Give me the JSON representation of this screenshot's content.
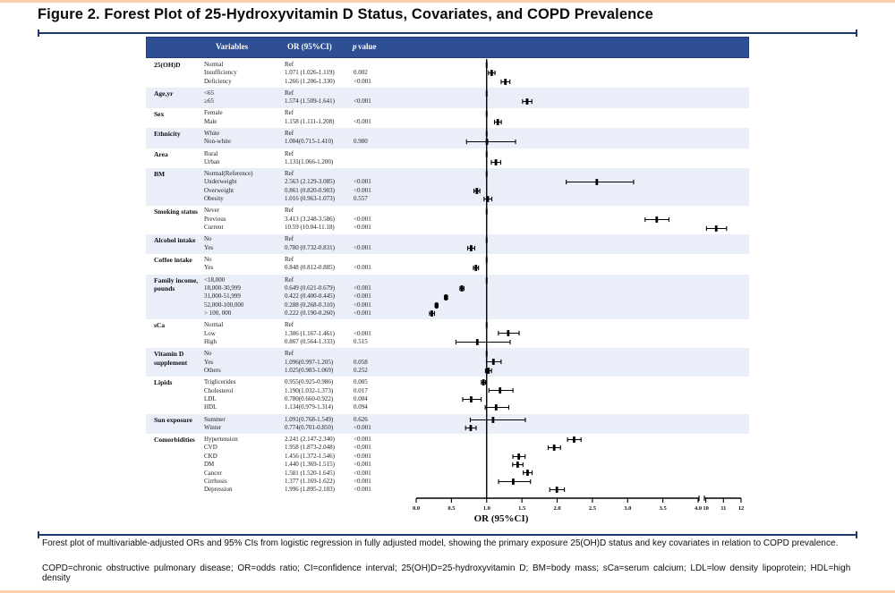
{
  "title": "Figure 2. Forest Plot of 25-Hydroxyvitamin D Status, Covariates, and COPD Prevalence",
  "table": {
    "header": {
      "variables": "Variables",
      "or_ci": "OR (95%CI)",
      "p_italic": "p",
      "p_rest": "value"
    }
  },
  "captions": {
    "line1": "Forest plot of multivariable-adjusted ORs and 95% CIs from logistic regression in fully adjusted model, showing the primary exposure 25(OH)D status and key covariates in relation to COPD prevalence.",
    "line2": "COPD=chronic obstructive pulmonary disease; OR=odds ratio; CI=confidence interval; 25(OH)D=25-hydroxyvitamin D; BM=body mass; sCa=serum calcium; LDL=low density lipoprotein; HDL=high density"
  },
  "colors": {
    "header_bg": "#2e4f93",
    "header_border": "#203d79",
    "band_shade": "#e9eef8",
    "bracket_navy": "#1e3a6d",
    "edge_peach": "#f8cfae",
    "marker_black": "#000000"
  },
  "chart_data": {
    "type": "forest",
    "xlabel": "OR (95%CI)",
    "reference_or": 1.0,
    "axis": {
      "linear_ticks": [
        0.0,
        0.5,
        1.0,
        1.5,
        2.0,
        2.5,
        3.0,
        3.5,
        4.0
      ],
      "compressed_ticks": [
        10,
        11,
        12
      ],
      "break_after": 4.0,
      "grid": false
    },
    "groups": [
      {
        "label": "25(OH)D",
        "rows": [
          {
            "level": "Normal",
            "or_text": "Ref",
            "p": "",
            "ref": true
          },
          {
            "level": "Insufficiency",
            "or_text": "1.071 (1.026-1.119)",
            "p": "0.002",
            "or": 1.071,
            "lo": 1.026,
            "hi": 1.119
          },
          {
            "level": "Deficiency",
            "or_text": "1.266 (1.206-1.330)",
            "p": "<0.001",
            "or": 1.266,
            "lo": 1.206,
            "hi": 1.33
          }
        ]
      },
      {
        "label": "Age,yr",
        "rows": [
          {
            "level": "<65",
            "or_text": "Ref",
            "p": "",
            "ref": true
          },
          {
            "level": "≥65",
            "or_text": "1.574 (1.509-1.641)",
            "p": "<0.001",
            "or": 1.574,
            "lo": 1.509,
            "hi": 1.641
          }
        ]
      },
      {
        "label": "Sex",
        "rows": [
          {
            "level": "Female",
            "or_text": "Ref",
            "p": "",
            "ref": true
          },
          {
            "level": "Male",
            "or_text": "1.158 (1.111-1.208)",
            "p": "<0.001",
            "or": 1.158,
            "lo": 1.111,
            "hi": 1.208
          }
        ]
      },
      {
        "label": "Ethnicity",
        "rows": [
          {
            "level": "White",
            "or_text": "Ref",
            "p": "",
            "ref": true
          },
          {
            "level": "Non-white",
            "or_text": "1.004(0.715-1.410)",
            "p": "0.980",
            "or": 1.004,
            "lo": 0.715,
            "hi": 1.41
          }
        ]
      },
      {
        "label": "Area",
        "rows": [
          {
            "level": "Rural",
            "or_text": "Ref",
            "p": "",
            "ref": true
          },
          {
            "level": "Urban",
            "or_text": "1.131(1.066-1.200)",
            "p": "",
            "or": 1.131,
            "lo": 1.066,
            "hi": 1.2
          }
        ]
      },
      {
        "label": "BM",
        "rows": [
          {
            "level": "Normal(Reference)",
            "or_text": "Ref",
            "p": "",
            "ref": true
          },
          {
            "level": "Underweight",
            "or_text": "2.563 (2.129-3.085)",
            "p": "<0.001",
            "or": 2.563,
            "lo": 2.129,
            "hi": 3.085
          },
          {
            "level": "Overweight",
            "or_text": "0.861 (0.820-0.903)",
            "p": "<0.001",
            "or": 0.861,
            "lo": 0.82,
            "hi": 0.903
          },
          {
            "level": "Obesity",
            "or_text": "1.016 (0.963-1.073)",
            "p": "0.557",
            "or": 1.016,
            "lo": 0.963,
            "hi": 1.073
          }
        ]
      },
      {
        "label": "Smoking status",
        "rows": [
          {
            "level": "Never",
            "or_text": "Ref",
            "p": "",
            "ref": true
          },
          {
            "level": "Previous",
            "or_text": "3.413 (3.248-3.586)",
            "p": "<0.001",
            "or": 3.413,
            "lo": 3.248,
            "hi": 3.586
          },
          {
            "level": "Current",
            "or_text": "10.59 (10.04-11.18)",
            "p": "<0.001",
            "or": 10.59,
            "lo": 10.04,
            "hi": 11.18
          }
        ]
      },
      {
        "label": "Alcohol intake",
        "rows": [
          {
            "level": "No",
            "or_text": "Ref",
            "p": "",
            "ref": true
          },
          {
            "level": "Yes",
            "or_text": "0.780 (0.732-0.831)",
            "p": "<0.001",
            "or": 0.78,
            "lo": 0.732,
            "hi": 0.831
          }
        ]
      },
      {
        "label": "Coffee intake",
        "rows": [
          {
            "level": "No",
            "or_text": "Ref",
            "p": "",
            "ref": true
          },
          {
            "level": "Yes",
            "or_text": "0.848 (0.812-0.885)",
            "p": "<0.001",
            "or": 0.848,
            "lo": 0.812,
            "hi": 0.885
          }
        ]
      },
      {
        "label": "Family income,\npounds",
        "rows": [
          {
            "level": "<18,000",
            "or_text": "Ref",
            "p": "",
            "ref": true
          },
          {
            "level": "18,000-30,999",
            "or_text": "0.649 (0.621-0.679)",
            "p": "<0.001",
            "or": 0.649,
            "lo": 0.621,
            "hi": 0.679
          },
          {
            "level": "31,000-51,999",
            "or_text": "0.422 (0.400-0.445)",
            "p": "<0.001",
            "or": 0.422,
            "lo": 0.4,
            "hi": 0.445
          },
          {
            "level": "52,000-100,000",
            "or_text": "0.288 (0.268-0.310)",
            "p": "<0.001",
            "or": 0.288,
            "lo": 0.268,
            "hi": 0.31
          },
          {
            "level": "> 100,  000",
            "or_text": "0.222 (0.190-0.260)",
            "p": "<0.001",
            "or": 0.222,
            "lo": 0.19,
            "hi": 0.26
          }
        ]
      },
      {
        "label": "sCa",
        "rows": [
          {
            "level": "Normal",
            "or_text": "Ref",
            "p": "",
            "ref": true
          },
          {
            "level": "Low",
            "or_text": "1.306 (1.167-1.461)",
            "p": "<0.001",
            "or": 1.306,
            "lo": 1.167,
            "hi": 1.461
          },
          {
            "level": "High",
            "or_text": "0.867 (0.564-1.333)",
            "p": "0.515",
            "or": 0.867,
            "lo": 0.564,
            "hi": 1.333
          }
        ]
      },
      {
        "label": "Vitamin D\nsupplement",
        "rows": [
          {
            "level": "No",
            "or_text": "Ref",
            "p": "",
            "ref": true
          },
          {
            "level": "Yes",
            "or_text": "1.096(0.997-1.205)",
            "p": "0.058",
            "or": 1.096,
            "lo": 0.997,
            "hi": 1.205
          },
          {
            "level": "Others",
            "or_text": "1.025(0.983-1.069)",
            "p": "0.252",
            "or": 1.025,
            "lo": 0.983,
            "hi": 1.069
          }
        ]
      },
      {
        "label": "Lipids",
        "rows": [
          {
            "level": "Triglicerides",
            "or_text": "0.955(0.925-0.986)",
            "p": "0.005",
            "or": 0.955,
            "lo": 0.925,
            "hi": 0.986
          },
          {
            "level": "Cholesterol",
            "or_text": "1.190(1.032-1.373)",
            "p": "0.017",
            "or": 1.19,
            "lo": 1.032,
            "hi": 1.373
          },
          {
            "level": "LDL",
            "or_text": "0.780(0.660-0.922)",
            "p": "0.004",
            "or": 0.78,
            "lo": 0.66,
            "hi": 0.922
          },
          {
            "level": "HDL",
            "or_text": "1.134(0.979-1.314)",
            "p": "0.094",
            "or": 1.134,
            "lo": 0.979,
            "hi": 1.314
          }
        ]
      },
      {
        "label": "Sun exposure",
        "rows": [
          {
            "level": "Summer",
            "or_text": "1.091(0.768-1.549)",
            "p": "0.626",
            "or": 1.091,
            "lo": 0.768,
            "hi": 1.549
          },
          {
            "level": "Winter",
            "or_text": "0.774(0.701-0.850)",
            "p": "<0.001",
            "or": 0.774,
            "lo": 0.701,
            "hi": 0.85
          }
        ]
      },
      {
        "label": "Comorbidities",
        "rows": [
          {
            "level": "Hypertension",
            "or_text": "2.241 (2.147-2.340)",
            "p": "<0.001",
            "or": 2.241,
            "lo": 2.147,
            "hi": 2.34
          },
          {
            "level": "CVD",
            "or_text": "1.958 (1.873-2.048)",
            "p": "<0.001",
            "or": 1.958,
            "lo": 1.873,
            "hi": 2.048
          },
          {
            "level": "CKD",
            "or_text": "1.456 (1.372-1.546)",
            "p": "<0.001",
            "or": 1.456,
            "lo": 1.372,
            "hi": 1.546
          },
          {
            "level": "DM",
            "or_text": "1.440 (1.369-1.515)",
            "p": "<0.001",
            "or": 1.44,
            "lo": 1.369,
            "hi": 1.515
          },
          {
            "level": "Cancer",
            "or_text": "1.581 (1.520-1.645)",
            "p": "<0.001",
            "or": 1.581,
            "lo": 1.52,
            "hi": 1.645
          },
          {
            "level": "Cirrhosis",
            "or_text": "1.377 (1.169-1.622)",
            "p": "<0.001",
            "or": 1.377,
            "lo": 1.169,
            "hi": 1.622
          },
          {
            "level": "Depression",
            "or_text": "1.996 (1.895-2.103)",
            "p": "<0.001",
            "or": 1.996,
            "lo": 1.895,
            "hi": 2.103
          }
        ]
      }
    ]
  }
}
